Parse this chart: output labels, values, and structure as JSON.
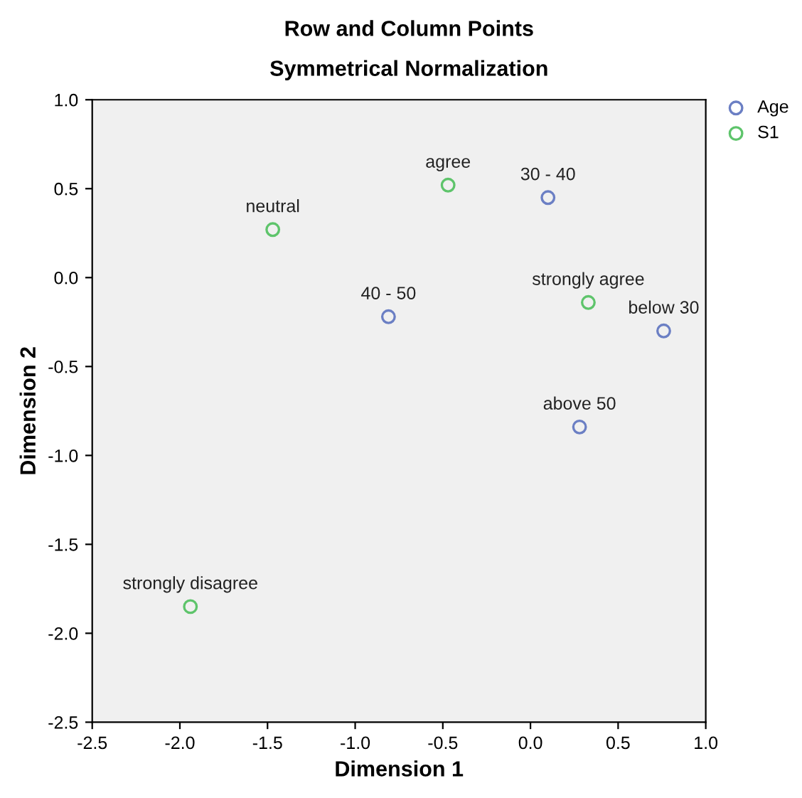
{
  "chart_data": {
    "type": "scatter",
    "title": "Row and Column Points",
    "subtitle": "Symmetrical Normalization",
    "xlabel": "Dimension 1",
    "ylabel": "Dimension 2",
    "series": [
      {
        "name": "Age",
        "color": "#6b7fc4",
        "x": [
          0.1,
          -0.81,
          0.76,
          0.28
        ],
        "values": [
          0.45,
          -0.22,
          -0.3,
          -0.84
        ]
      },
      {
        "name": "S1",
        "color": "#5ec46b",
        "x": [
          -1.47,
          -0.47,
          0.33,
          -1.94
        ],
        "values": [
          0.27,
          0.52,
          -0.14,
          -1.85
        ]
      }
    ],
    "annotations": [
      {
        "text": "30 - 40",
        "x": 0.1,
        "y": 0.45
      },
      {
        "text": "40 - 50",
        "x": -0.81,
        "y": -0.22
      },
      {
        "text": "below 30",
        "x": 0.76,
        "y": -0.3
      },
      {
        "text": "above 50",
        "x": 0.28,
        "y": -0.84
      },
      {
        "text": "neutral",
        "x": -1.47,
        "y": 0.27
      },
      {
        "text": "agree",
        "x": -0.47,
        "y": 0.52
      },
      {
        "text": "strongly agree",
        "x": 0.33,
        "y": -0.14
      },
      {
        "text": "strongly disagree",
        "x": -1.94,
        "y": -1.85
      }
    ],
    "xlim": [
      -2.5,
      1.0
    ],
    "xticks": [
      -2.5,
      {
        "value": -2,
        "label": "-2.0"
      },
      -1.5,
      {
        "value": -1,
        "label": "-1.0"
      },
      -0.5,
      {
        "value": 0,
        "label": "0.0"
      },
      0.5,
      {
        "value": 1,
        "label": "1.0"
      }
    ],
    "ylim": [
      -2.5,
      1.0
    ],
    "yticks": [
      -2.5,
      {
        "value": -2,
        "label": "-2.0"
      },
      -1.5,
      {
        "value": -1,
        "label": "-1.0"
      },
      -0.5,
      {
        "value": 0,
        "label": "0.0"
      },
      0.5,
      {
        "value": 1,
        "label": "1.0"
      }
    ],
    "marker": "circle",
    "grid": false,
    "legend": "top right"
  }
}
